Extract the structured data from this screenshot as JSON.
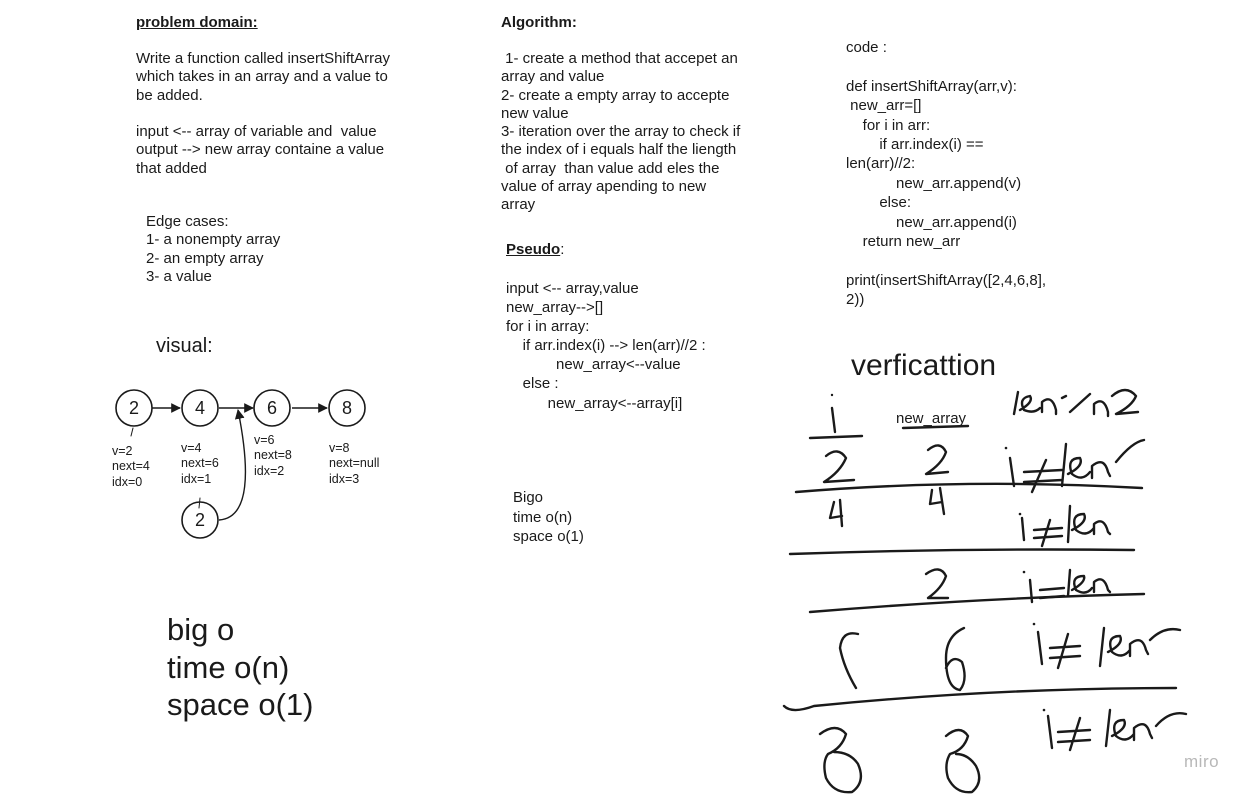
{
  "problem_domain": {
    "heading": "problem domain:",
    "text": "Write a function called insertShiftArray\nwhich takes in an array and a value to\nbe added.\n\ninput <-- array of variable and  value\noutput --> new array containe a value\nthat added"
  },
  "edge_cases": {
    "text": "Edge cases:\n1- a nonempty array\n2- an empty array\n3- a value"
  },
  "algorithm": {
    "heading": "Algorithm:",
    "text": " 1- create a method that accepet an\narray and value\n2- create a empty array to accepte\nnew value\n3- iteration over the array to check if\nthe index of i equals half the liength\n of array  than value add eles the\nvalue of array apending to new\narray"
  },
  "pseudo": {
    "heading": "Pseudo",
    "colon": ":",
    "text": "input <-- array,value\nnew_array-->[]\nfor i in array:\n    if arr.index(i) --> len(arr)//2 :\n            new_array<--value\n    else :\n          new_array<--array[i]"
  },
  "code": {
    "text": "code :\n\ndef insertShiftArray(arr,v):\n new_arr=[]\n    for i in arr:\n        if arr.index(i) ==\nlen(arr)//2:\n            new_arr.append(v)\n        else:\n            new_arr.append(i)\n    return new_arr\n\nprint(insertShiftArray([2,4,6,8],\n2))"
  },
  "bigo_small": {
    "text": "Bigo\ntime o(n)\nspace o(1)"
  },
  "bigo_large": {
    "text": "big o\ntime o(n)\nspace o(1)"
  },
  "visual": {
    "heading": "visual:",
    "nodes": [
      {
        "value": "2",
        "label": "v=2\nnext=4\nidx=0"
      },
      {
        "value": "4",
        "label": "v=4\nnext=6\nidx=1"
      },
      {
        "value": "6",
        "label": "v=6\nnext=8\nidx=2"
      },
      {
        "value": "8",
        "label": "v=8\nnext=null\nidx=3"
      }
    ],
    "inserted_node": {
      "value": "2"
    }
  },
  "verification": {
    "heading": "verficattion",
    "column_header": "new_array"
  },
  "watermark": "miro"
}
